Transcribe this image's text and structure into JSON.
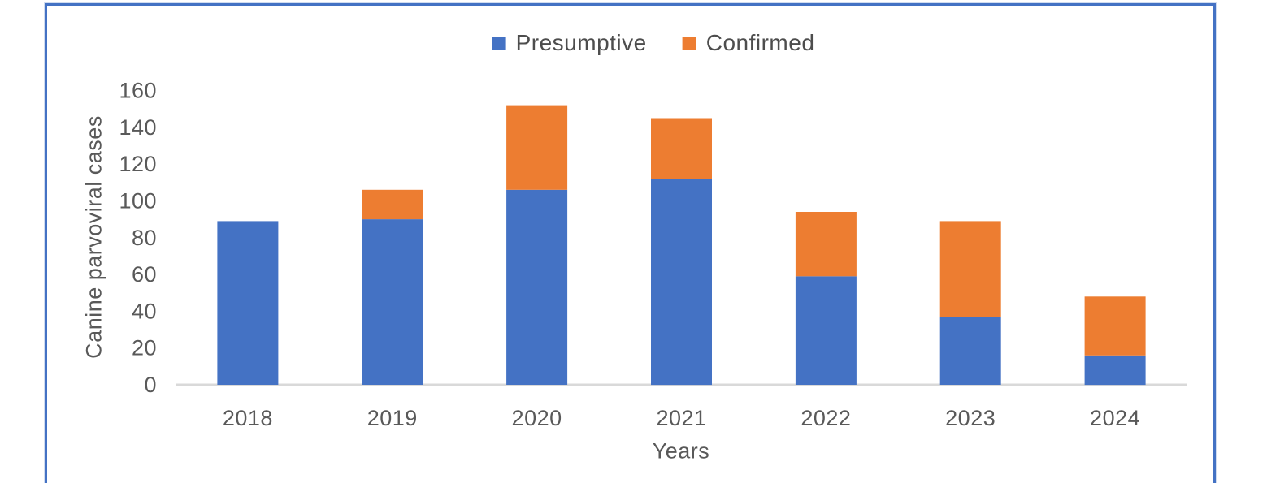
{
  "chart_data": {
    "type": "bar",
    "stacked": true,
    "categories": [
      "2018",
      "2019",
      "2020",
      "2021",
      "2022",
      "2023",
      "2024"
    ],
    "series": [
      {
        "name": "Presumptive",
        "color": "#4472C4",
        "values": [
          89,
          90,
          106,
          112,
          59,
          37,
          16
        ]
      },
      {
        "name": "Confirmed",
        "color": "#ED7D31",
        "values": [
          0,
          16,
          46,
          33,
          35,
          52,
          32
        ]
      }
    ],
    "totals": [
      89,
      106,
      152,
      145,
      94,
      89,
      48
    ],
    "xlabel": "Years",
    "ylabel": "Canine parvoviral cases",
    "ylim": [
      0,
      160
    ],
    "ytick_step": 20,
    "yticks": [
      0,
      20,
      40,
      60,
      80,
      100,
      120,
      140,
      160
    ],
    "legend_position": "top-center",
    "grid": false,
    "axis_line_color": "#D9D9D9",
    "tick_label_color": "#595959",
    "frame_border_color": "#4472C4"
  }
}
